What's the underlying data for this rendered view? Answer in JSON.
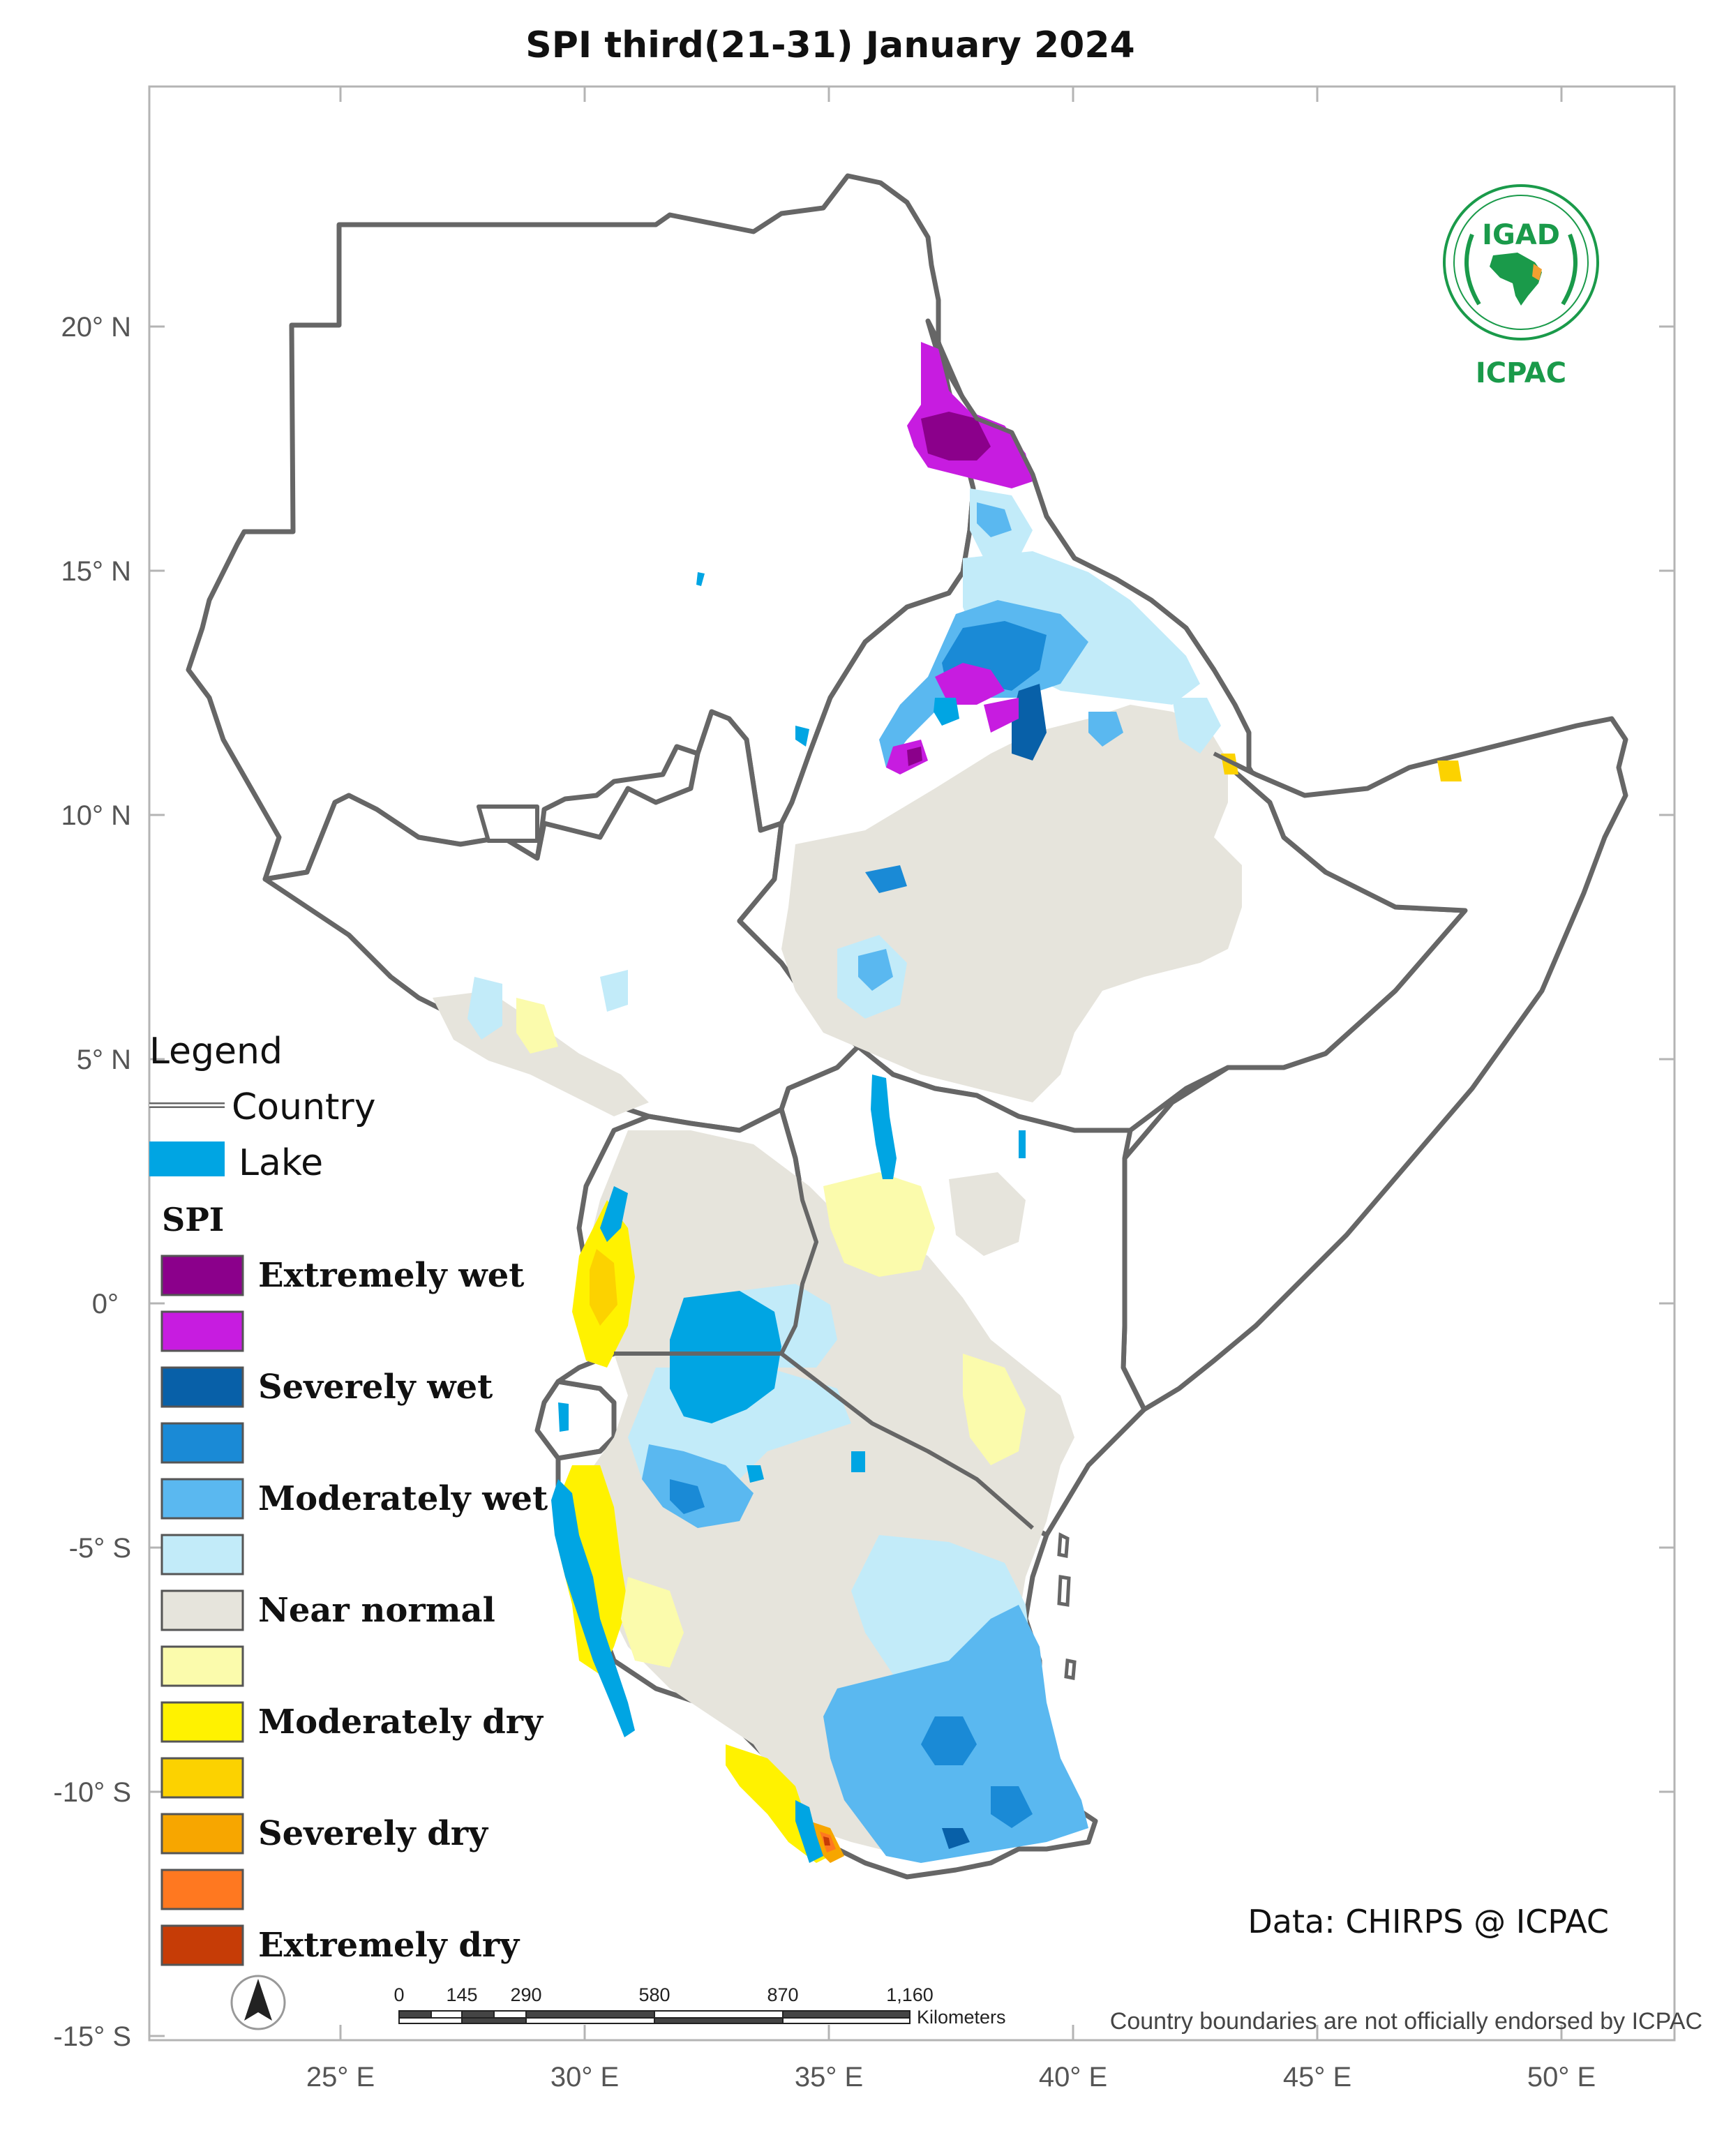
{
  "title": "SPI  third(21-31) January 2024",
  "lat_labels": [
    "20° N",
    "15° N",
    "10° N",
    "5° N",
    "0°",
    "-5° S",
    "-10° S",
    "-15° S"
  ],
  "lon_labels": [
    "25° E",
    "30° E",
    "35° E",
    "40° E",
    "45° E",
    "50° E"
  ],
  "legend": {
    "title": "Legend",
    "country_label": "Country",
    "lake_label": "Lake",
    "lake_color": "#00a5e3",
    "spi_title": "SPI",
    "classes": [
      {
        "color": "#8b008b",
        "label": "Extremely wet"
      },
      {
        "color": "#c71ce0",
        "label": ""
      },
      {
        "color": "#0860a8",
        "label": "Severely wet"
      },
      {
        "color": "#1a8ad6",
        "label": ""
      },
      {
        "color": "#5ab8f0",
        "label": "Moderately wet"
      },
      {
        "color": "#c2ebf9",
        "label": ""
      },
      {
        "color": "#e6e4dc",
        "label": "Near normal"
      },
      {
        "color": "#fbfbac",
        "label": ""
      },
      {
        "color": "#fff200",
        "label": "Moderately dry"
      },
      {
        "color": "#fcd200",
        "label": ""
      },
      {
        "color": "#f7a600",
        "label": "Severely dry"
      },
      {
        "color": "#ff7820",
        "label": ""
      },
      {
        "color": "#c63c06",
        "label": "Extremely dry"
      }
    ]
  },
  "credit": "Data: CHIRPS @ ICPAC",
  "disclaimer": "Country boundaries are not officially endorsed by ICPAC",
  "scale_bar": {
    "ticks": [
      "0",
      "145",
      "290",
      "580",
      "870",
      "1,160"
    ],
    "unit": "Kilometers"
  },
  "logo": {
    "top_text": "IGAD",
    "bottom_text": "ICPAC"
  },
  "north_arrow_icon": "north-arrow-icon"
}
